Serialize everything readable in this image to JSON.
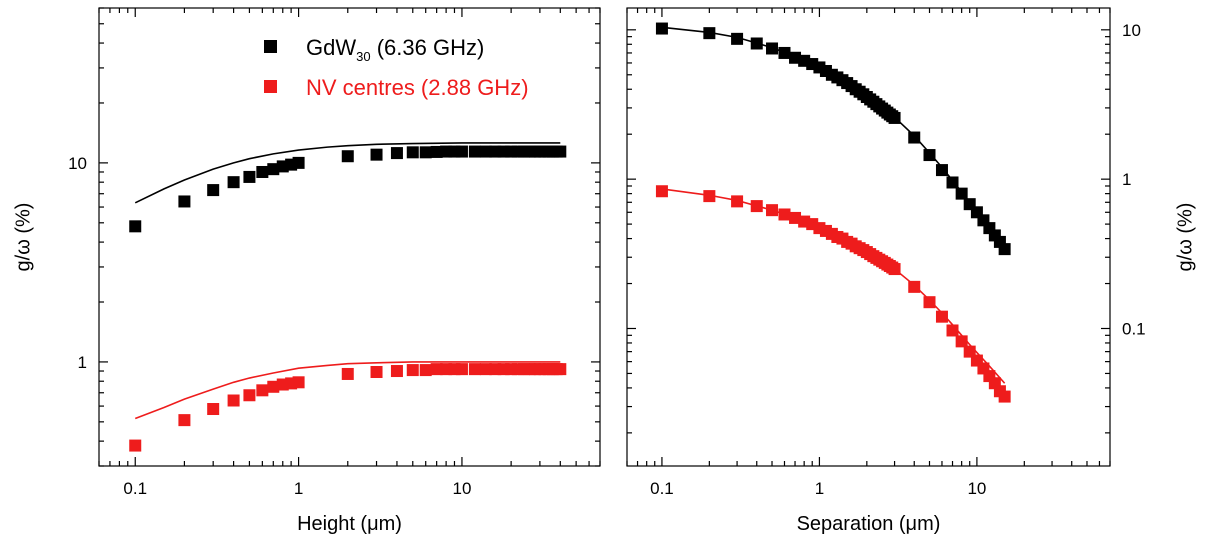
{
  "chart_data": [
    {
      "type": "scatter",
      "xscale": "log",
      "yscale": "log",
      "xlim": [
        0.06,
        70
      ],
      "ylim": [
        0.3,
        60
      ],
      "xlabel": "Height (μm)",
      "ylabel": "g/ω (%)",
      "xticks": [
        {
          "value": 0.1,
          "label": "0.1"
        },
        {
          "value": 1,
          "label": "1"
        },
        {
          "value": 10,
          "label": "10"
        }
      ],
      "yticks": [
        {
          "value": 1,
          "label": "1"
        },
        {
          "value": 10,
          "label": "10"
        }
      ],
      "ytick_side": "left",
      "legend": {
        "position": "top",
        "entries": [
          {
            "base": "GdW",
            "sub": "30",
            "rest": " (6.36 GHz)",
            "color": "#000000"
          },
          {
            "base": "NV centres (2.88 GHz)",
            "sub": "",
            "rest": "",
            "color": "#ee1c1c"
          }
        ]
      },
      "series": [
        {
          "color": "#000000",
          "points": {
            "x": [
              0.1,
              0.2,
              0.3,
              0.4,
              0.5,
              0.6,
              0.7,
              0.8,
              0.9,
              1,
              2,
              3,
              4,
              5,
              6,
              7,
              8,
              9,
              10,
              12,
              14,
              16,
              18,
              20,
              22,
              24,
              26,
              28,
              30,
              32,
              34,
              36,
              38,
              40
            ],
            "y": [
              4.8,
              6.4,
              7.3,
              8.0,
              8.5,
              9.0,
              9.3,
              9.6,
              9.8,
              10.0,
              10.8,
              11.0,
              11.2,
              11.3,
              11.3,
              11.35,
              11.4,
              11.4,
              11.4,
              11.4,
              11.4,
              11.4,
              11.4,
              11.4,
              11.4,
              11.4,
              11.4,
              11.4,
              11.4,
              11.4,
              11.4,
              11.4,
              11.4,
              11.4
            ]
          },
          "fit": {
            "x": [
              0.1,
              0.15,
              0.2,
              0.3,
              0.4,
              0.5,
              0.7,
              1,
              1.5,
              2,
              3,
              5,
              10,
              20,
              40
            ],
            "y": [
              6.3,
              7.4,
              8.2,
              9.3,
              10.0,
              10.5,
              11.1,
              11.6,
              12.0,
              12.2,
              12.4,
              12.5,
              12.6,
              12.6,
              12.6
            ]
          }
        },
        {
          "color": "#ee1c1c",
          "points": {
            "x": [
              0.1,
              0.2,
              0.3,
              0.4,
              0.5,
              0.6,
              0.7,
              0.8,
              0.9,
              1,
              2,
              3,
              4,
              5,
              6,
              7,
              8,
              9,
              10,
              12,
              14,
              16,
              18,
              20,
              22,
              24,
              26,
              28,
              30,
              32,
              34,
              36,
              38,
              40
            ],
            "y": [
              0.38,
              0.51,
              0.58,
              0.64,
              0.68,
              0.72,
              0.75,
              0.77,
              0.78,
              0.79,
              0.87,
              0.89,
              0.9,
              0.91,
              0.91,
              0.92,
              0.92,
              0.92,
              0.92,
              0.92,
              0.92,
              0.92,
              0.92,
              0.92,
              0.92,
              0.92,
              0.92,
              0.92,
              0.92,
              0.92,
              0.92,
              0.92,
              0.92,
              0.92
            ]
          },
          "fit": {
            "x": [
              0.1,
              0.15,
              0.2,
              0.3,
              0.4,
              0.5,
              0.7,
              1,
              1.5,
              2,
              3,
              5,
              10,
              20,
              40
            ],
            "y": [
              0.52,
              0.59,
              0.65,
              0.73,
              0.79,
              0.83,
              0.88,
              0.93,
              0.96,
              0.98,
              0.99,
              1.0,
              1.0,
              1.0,
              1.0
            ]
          }
        }
      ]
    },
    {
      "type": "scatter",
      "xscale": "log",
      "yscale": "log",
      "xlim": [
        0.06,
        70
      ],
      "ylim": [
        0.012,
        14
      ],
      "xlabel": "Separation (μm)",
      "ylabel": "g/ω (%)",
      "xticks": [
        {
          "value": 0.1,
          "label": "0.1"
        },
        {
          "value": 1,
          "label": "1"
        },
        {
          "value": 10,
          "label": "10"
        }
      ],
      "yticks": [
        {
          "value": 0.1,
          "label": "0.1"
        },
        {
          "value": 1,
          "label": "1"
        },
        {
          "value": 10,
          "label": "10"
        }
      ],
      "ytick_side": "right",
      "series": [
        {
          "color": "#000000",
          "points": {
            "x": [
              0.1,
              0.2,
              0.3,
              0.4,
              0.5,
              0.6,
              0.7,
              0.8,
              0.9,
              1.0,
              1.1,
              1.2,
              1.3,
              1.4,
              1.5,
              1.6,
              1.7,
              1.8,
              1.9,
              2.0,
              2.1,
              2.2,
              2.3,
              2.4,
              2.5,
              2.6,
              2.7,
              2.8,
              2.9,
              3.0,
              4,
              5,
              6,
              7,
              8,
              9,
              10,
              11,
              12,
              13,
              14,
              15
            ],
            "y": [
              10.2,
              9.5,
              8.7,
              8.1,
              7.5,
              7.0,
              6.5,
              6.2,
              5.9,
              5.6,
              5.3,
              5.0,
              4.8,
              4.6,
              4.4,
              4.2,
              4.0,
              3.85,
              3.7,
              3.55,
              3.42,
              3.3,
              3.18,
              3.07,
              2.97,
              2.88,
              2.79,
              2.71,
              2.64,
              2.57,
              1.9,
              1.45,
              1.15,
              0.95,
              0.8,
              0.68,
              0.6,
              0.53,
              0.47,
              0.42,
              0.38,
              0.34
            ]
          },
          "fit": {
            "x": [
              0.1,
              0.2,
              0.3,
              0.5,
              0.7,
              1,
              1.5,
              2,
              3,
              4,
              5,
              6,
              7,
              8,
              9,
              10,
              12,
              15
            ],
            "y": [
              10.4,
              9.6,
              8.9,
              7.6,
              6.6,
              5.6,
              4.5,
              3.6,
              2.6,
              1.95,
              1.5,
              1.2,
              0.98,
              0.82,
              0.7,
              0.61,
              0.48,
              0.35
            ]
          }
        },
        {
          "color": "#ee1c1c",
          "points": {
            "x": [
              0.1,
              0.2,
              0.3,
              0.4,
              0.5,
              0.6,
              0.7,
              0.8,
              0.9,
              1.0,
              1.1,
              1.2,
              1.3,
              1.4,
              1.5,
              1.6,
              1.7,
              1.8,
              1.9,
              2.0,
              2.1,
              2.2,
              2.3,
              2.4,
              2.5,
              2.6,
              2.7,
              2.8,
              2.9,
              3.0,
              4,
              5,
              6,
              7,
              8,
              9,
              10,
              11,
              12,
              13,
              14,
              15
            ],
            "y": [
              0.83,
              0.77,
              0.71,
              0.66,
              0.62,
              0.58,
              0.55,
              0.52,
              0.5,
              0.47,
              0.45,
              0.43,
              0.41,
              0.4,
              0.38,
              0.37,
              0.355,
              0.345,
              0.335,
              0.325,
              0.315,
              0.305,
              0.297,
              0.289,
              0.282,
              0.275,
              0.268,
              0.262,
              0.256,
              0.25,
              0.19,
              0.15,
              0.12,
              0.097,
              0.082,
              0.07,
              0.061,
              0.054,
              0.048,
              0.043,
              0.038,
              0.035
            ]
          },
          "fit": {
            "x": [
              0.1,
              0.2,
              0.3,
              0.5,
              0.7,
              1,
              1.5,
              2,
              3,
              4,
              5,
              6,
              7,
              8,
              9,
              10,
              12,
              15
            ],
            "y": [
              0.86,
              0.78,
              0.72,
              0.62,
              0.55,
              0.48,
              0.39,
              0.33,
              0.25,
              0.195,
              0.155,
              0.127,
              0.106,
              0.09,
              0.078,
              0.069,
              0.056,
              0.043
            ]
          }
        }
      ]
    }
  ]
}
